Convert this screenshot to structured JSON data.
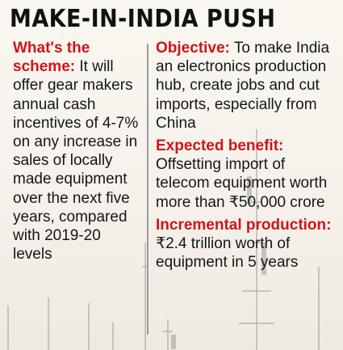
{
  "headline": "MAKE-IN-INDIA PUSH",
  "left": {
    "heading": "What's the scheme:",
    "body": "It will offer gear makers annual cash incentives of 4-7% on any increase in sales of locally made equipment over the next five years, compared with 2019-20 levels"
  },
  "right": {
    "objective": {
      "heading": "Objective:",
      "body": "To make India an electronics production hub, create jobs and cut imports, especially from China"
    },
    "benefit": {
      "heading": "Expected benefit:",
      "body": "Offsetting import of telecom equipment worth more than ₹50,000 crore"
    },
    "production": {
      "heading": "Incremental production:",
      "body": "₹2.4 trillion worth of equipment in 5 years"
    }
  },
  "colors": {
    "accent": "#d0141a",
    "text": "#161616",
    "background": "#f7f3ec"
  }
}
